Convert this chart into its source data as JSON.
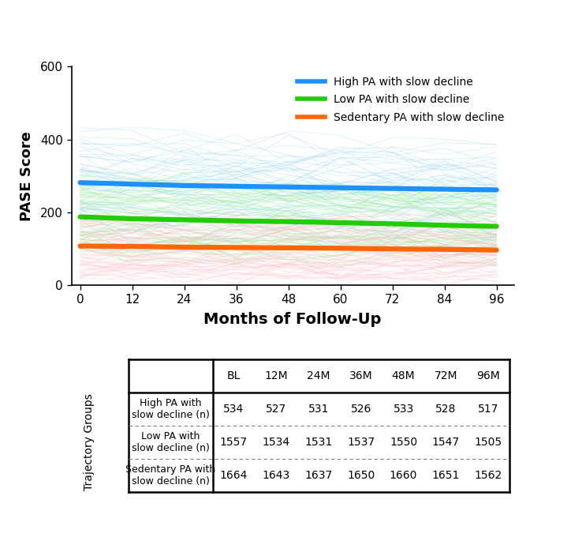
{
  "x_ticks": [
    0,
    12,
    24,
    36,
    48,
    60,
    72,
    84,
    96
  ],
  "x_label": "Months of Follow-Up",
  "y_label": "PASE Score",
  "y_lim": [
    0,
    600
  ],
  "y_ticks": [
    0,
    200,
    400,
    600
  ],
  "mean_lines": {
    "high": {
      "color": "#1E90FF",
      "values": [
        282,
        278,
        274,
        272,
        270,
        268,
        266,
        264,
        262
      ]
    },
    "low": {
      "color": "#22CC00",
      "values": [
        188,
        183,
        180,
        177,
        175,
        172,
        169,
        165,
        162
      ]
    },
    "sed": {
      "color": "#FF6600",
      "values": [
        108,
        107,
        105,
        104,
        103,
        102,
        100,
        99,
        97
      ]
    }
  },
  "individual_lines": {
    "high": {
      "color": "#87CEEB",
      "alpha": 0.35,
      "n_lines": 60,
      "base": 282,
      "spread": 120,
      "noise": 50
    },
    "low": {
      "color": "#90EE90",
      "alpha": 0.35,
      "n_lines": 80,
      "base": 188,
      "spread": 100,
      "noise": 40
    },
    "sed": {
      "color": "#FFB6C1",
      "alpha": 0.35,
      "n_lines": 80,
      "base": 108,
      "spread": 80,
      "noise": 35
    }
  },
  "legend_entries": [
    {
      "label": "High PA with slow decline",
      "color": "#1E90FF"
    },
    {
      "label": "Low PA with slow decline",
      "color": "#22CC00"
    },
    {
      "label": "Sedentary PA with slow decline",
      "color": "#FF6600"
    }
  ],
  "table": {
    "col_labels": [
      "",
      "BL",
      "12M",
      "24M",
      "36M",
      "48M",
      "72M",
      "96M"
    ],
    "row_labels": [
      "High PA with\nslow decline (n)",
      "Low PA with\nslow decline (n)",
      "Sedentary PA with\nslow decline (n)"
    ],
    "y_label": "Trajectory Groups",
    "values": [
      [
        534,
        527,
        531,
        526,
        533,
        528,
        517
      ],
      [
        1557,
        1534,
        1531,
        1537,
        1550,
        1547,
        1505
      ],
      [
        1664,
        1643,
        1637,
        1650,
        1660,
        1651,
        1562
      ]
    ]
  }
}
